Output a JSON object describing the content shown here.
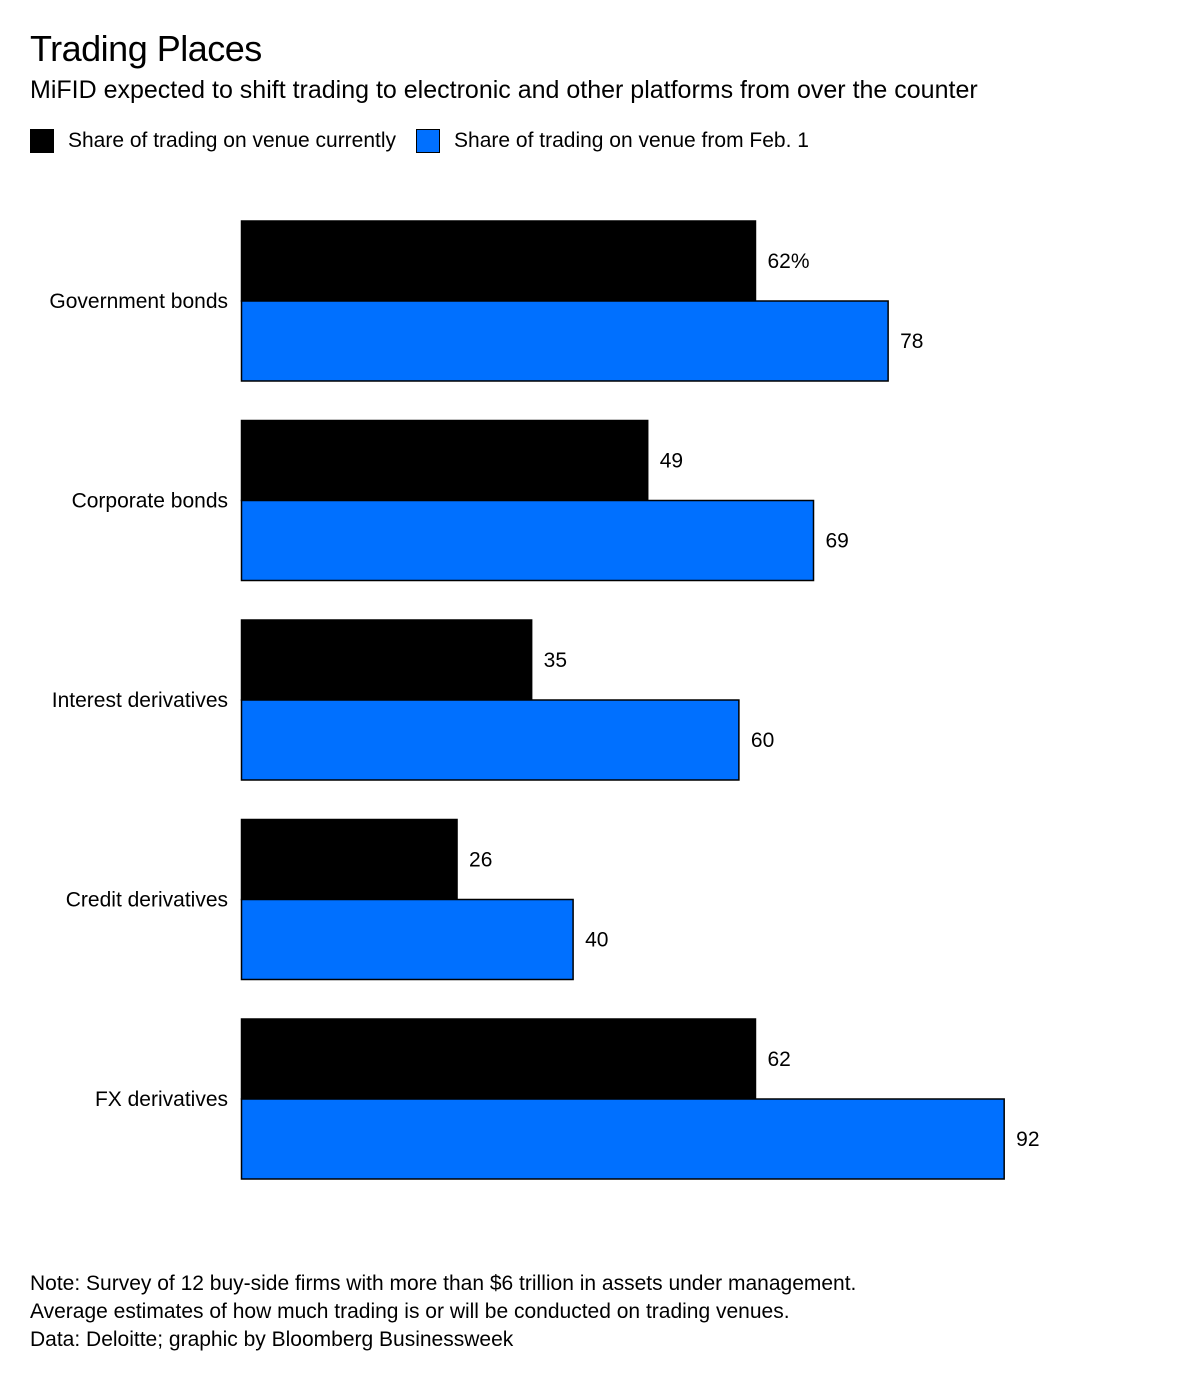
{
  "title": "Trading Places",
  "subtitle": "MiFID expected to shift trading to electronic and other platforms from over the counter",
  "colors": {
    "current": "#000000",
    "future": "#0070ff"
  },
  "legend": [
    {
      "label": "Share of trading on venue currently",
      "color": "#000000"
    },
    {
      "label": "Share of trading on venue from Feb. 1",
      "color": "#0070ff"
    }
  ],
  "chart_data": {
    "type": "bar",
    "orientation": "horizontal",
    "categories": [
      "Government bonds",
      "Corporate bonds",
      "Interest derivatives",
      "Credit derivatives",
      "FX derivatives"
    ],
    "series": [
      {
        "name": "Share of trading on venue currently",
        "values": [
          62,
          49,
          35,
          26,
          62
        ],
        "labels": [
          "62%",
          "49",
          "35",
          "26",
          "62"
        ]
      },
      {
        "name": "Share of trading on venue from Feb. 1",
        "values": [
          78,
          69,
          60,
          40,
          92
        ],
        "labels": [
          "78",
          "69",
          "60",
          "40",
          "92"
        ]
      }
    ],
    "xlim": [
      0,
      100
    ],
    "grid": false,
    "legend_position": "top-left",
    "unit": "%"
  },
  "notes": [
    "Note: Survey of 12 buy-side firms with more than $6 trillion in assets under management.",
    "Average estimates of how much trading is or will be conducted on trading venues.",
    "Data: Deloitte; graphic by Bloomberg Businessweek"
  ]
}
